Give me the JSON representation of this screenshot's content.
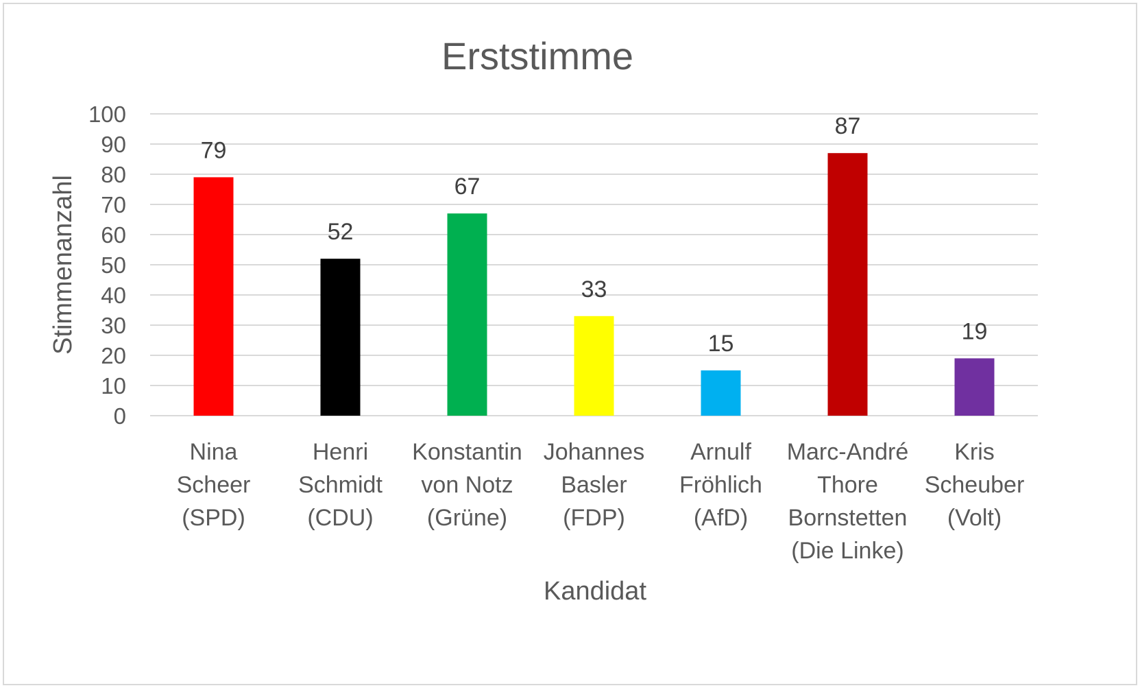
{
  "chart_data": {
    "type": "bar",
    "title": "Erststimme",
    "xlabel": "Kandidat",
    "ylabel": "Stimmenanzahl",
    "ylim": [
      0,
      100
    ],
    "yticks": [
      0,
      10,
      20,
      30,
      40,
      50,
      60,
      70,
      80,
      90,
      100
    ],
    "grid": true,
    "legend": "none",
    "categories": [
      [
        "Nina",
        "Scheer",
        "(SPD)"
      ],
      [
        "Henri",
        "Schmidt",
        "(CDU)"
      ],
      [
        "Konstantin",
        "von Notz",
        "(Grüne)"
      ],
      [
        "Johannes",
        "Basler",
        "(FDP)"
      ],
      [
        "Arnulf",
        "Fröhlich",
        "(AfD)"
      ],
      [
        "Marc-André",
        "Thore",
        "Bornstetten",
        "(Die Linke)"
      ],
      [
        "Kris",
        "Scheuber",
        "(Volt)"
      ]
    ],
    "values": [
      79,
      52,
      67,
      33,
      15,
      87,
      19
    ],
    "colors": [
      "#ff0000",
      "#000000",
      "#00b050",
      "#ffff00",
      "#00b0f0",
      "#c00000",
      "#7030a0"
    ]
  }
}
